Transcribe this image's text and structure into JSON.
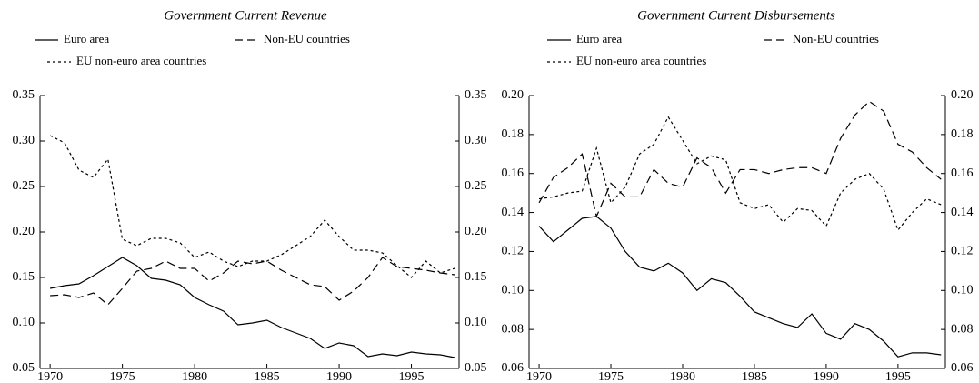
{
  "chart_data": [
    {
      "type": "line",
      "title": "Government Current Revenue",
      "x": [
        1970,
        1971,
        1972,
        1973,
        1974,
        1975,
        1976,
        1977,
        1978,
        1979,
        1980,
        1981,
        1982,
        1983,
        1984,
        1985,
        1986,
        1987,
        1988,
        1989,
        1990,
        1991,
        1992,
        1993,
        1994,
        1995,
        1996,
        1997,
        1998
      ],
      "xlim": [
        1969.3,
        1998.3
      ],
      "xticks": [
        1970,
        1975,
        1980,
        1985,
        1990,
        1995
      ],
      "ylim": [
        0.05,
        0.35
      ],
      "yticks": [
        0.05,
        {
          "value": 0.1,
          "label": "0.10"
        },
        0.15,
        {
          "value": 0.2,
          "label": "0.20"
        },
        0.25,
        {
          "value": 0.3,
          "label": "0.30"
        },
        0.35
      ],
      "series": [
        {
          "name": "Euro area",
          "color": "#000000",
          "style": "solid",
          "values": [
            0.138,
            0.141,
            0.143,
            0.152,
            0.162,
            0.172,
            0.163,
            0.149,
            0.147,
            0.142,
            0.128,
            0.12,
            0.113,
            0.098,
            0.1,
            0.103,
            0.095,
            0.089,
            0.083,
            0.072,
            0.078,
            0.075,
            0.063,
            0.066,
            0.064,
            0.068,
            0.066,
            0.065,
            0.062
          ]
        },
        {
          "name": "Non-EU countries",
          "color": "#000000",
          "style": "dashed",
          "values": [
            0.13,
            0.131,
            0.128,
            0.133,
            0.12,
            0.138,
            0.157,
            0.16,
            0.168,
            0.16,
            0.16,
            0.146,
            0.155,
            0.168,
            0.165,
            0.168,
            0.158,
            0.15,
            0.142,
            0.14,
            0.125,
            0.135,
            0.15,
            0.172,
            0.162,
            0.16,
            0.158,
            0.155,
            0.153
          ]
        },
        {
          "name": "EU non-euro area countries",
          "color": "#000000",
          "style": "dotted",
          "values": [
            0.306,
            0.298,
            0.268,
            0.26,
            0.28,
            0.192,
            0.185,
            0.193,
            0.193,
            0.188,
            0.172,
            0.178,
            0.168,
            0.162,
            0.168,
            0.168,
            0.175,
            0.185,
            0.195,
            0.213,
            0.195,
            0.18,
            0.18,
            0.177,
            0.163,
            0.15,
            0.168,
            0.155,
            0.16
          ]
        }
      ]
    },
    {
      "type": "line",
      "title": "Government Current Disbursements",
      "x": [
        1970,
        1971,
        1972,
        1973,
        1974,
        1975,
        1976,
        1977,
        1978,
        1979,
        1980,
        1981,
        1982,
        1983,
        1984,
        1985,
        1986,
        1987,
        1988,
        1989,
        1990,
        1991,
        1992,
        1993,
        1994,
        1995,
        1996,
        1997,
        1998
      ],
      "xlim": [
        1969.3,
        1998.3
      ],
      "xticks": [
        1970,
        1975,
        1980,
        1985,
        1990,
        1995
      ],
      "ylim": [
        0.06,
        0.2
      ],
      "yticks": [
        0.06,
        0.08,
        {
          "value": 0.1,
          "label": "0.10"
        },
        0.12,
        0.14,
        0.16,
        0.18,
        {
          "value": 0.2,
          "label": "0.20"
        }
      ],
      "series": [
        {
          "name": "Euro area",
          "color": "#000000",
          "style": "solid",
          "values": [
            0.133,
            0.125,
            0.131,
            0.137,
            0.138,
            0.132,
            0.12,
            0.112,
            0.11,
            0.114,
            0.109,
            0.1,
            0.106,
            0.104,
            0.097,
            0.089,
            0.086,
            0.083,
            0.081,
            0.088,
            0.078,
            0.075,
            0.083,
            0.08,
            0.074,
            0.066,
            0.068,
            0.068,
            0.067
          ]
        },
        {
          "name": "Non-EU countries",
          "color": "#000000",
          "style": "dashed",
          "values": [
            0.145,
            0.158,
            0.163,
            0.17,
            0.138,
            0.155,
            0.148,
            0.148,
            0.162,
            0.155,
            0.153,
            0.168,
            0.163,
            0.15,
            0.162,
            0.162,
            0.16,
            0.162,
            0.163,
            0.163,
            0.16,
            0.178,
            0.19,
            0.197,
            0.192,
            0.175,
            0.171,
            0.163,
            0.157
          ]
        },
        {
          "name": "EU non-euro area countries",
          "color": "#000000",
          "style": "dotted",
          "values": [
            0.147,
            0.148,
            0.15,
            0.151,
            0.173,
            0.145,
            0.153,
            0.17,
            0.175,
            0.189,
            0.177,
            0.165,
            0.169,
            0.167,
            0.145,
            0.142,
            0.144,
            0.135,
            0.142,
            0.141,
            0.133,
            0.15,
            0.157,
            0.16,
            0.152,
            0.131,
            0.14,
            0.147,
            0.144
          ]
        }
      ]
    }
  ]
}
